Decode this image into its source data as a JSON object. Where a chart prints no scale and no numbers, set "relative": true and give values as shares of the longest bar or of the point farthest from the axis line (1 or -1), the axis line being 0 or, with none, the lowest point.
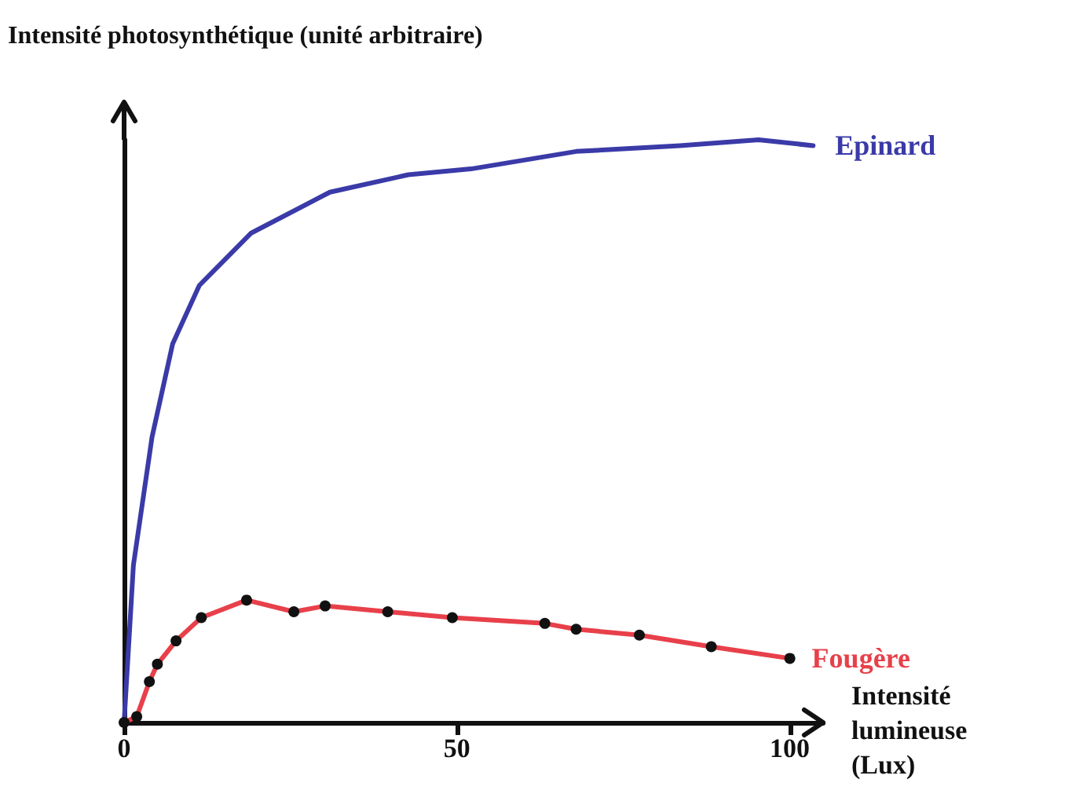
{
  "chart_data": {
    "type": "line",
    "relative": true,
    "ylabel": "Intensité photosynthétique (unité arbitraire)",
    "xlabel": "Intensité lumineuse (Lux)",
    "xlim": [
      0,
      105
    ],
    "xticks": [
      0,
      50,
      100
    ],
    "grid": false,
    "legend": false,
    "line_style": "solid",
    "series": [
      {
        "name": "Epinard",
        "color": "#3a3aa8",
        "marker": "none",
        "x": [
          0,
          1.4,
          4.2,
          7.3,
          11.3,
          19.1,
          30.9,
          42.7,
          52.1,
          67.9,
          83.5,
          95.3,
          103.5
        ],
        "values": [
          0,
          0.27,
          0.49,
          0.65,
          0.75,
          0.84,
          0.91,
          0.94,
          0.95,
          0.98,
          0.99,
          1,
          0.99
        ]
      },
      {
        "name": "Fougère",
        "color": "#e8404a",
        "marker": "circle",
        "x": [
          0,
          1.9,
          3.8,
          5.0,
          7.8,
          11.6,
          18.4,
          25.5,
          30.2,
          39.6,
          49.3,
          63.2,
          67.9,
          77.4,
          88.2,
          100
        ],
        "values": [
          0,
          0.01,
          0.07,
          0.1,
          0.14,
          0.18,
          0.21,
          0.19,
          0.2,
          0.19,
          0.18,
          0.17,
          0.16,
          0.15,
          0.13,
          0.11
        ]
      }
    ]
  }
}
